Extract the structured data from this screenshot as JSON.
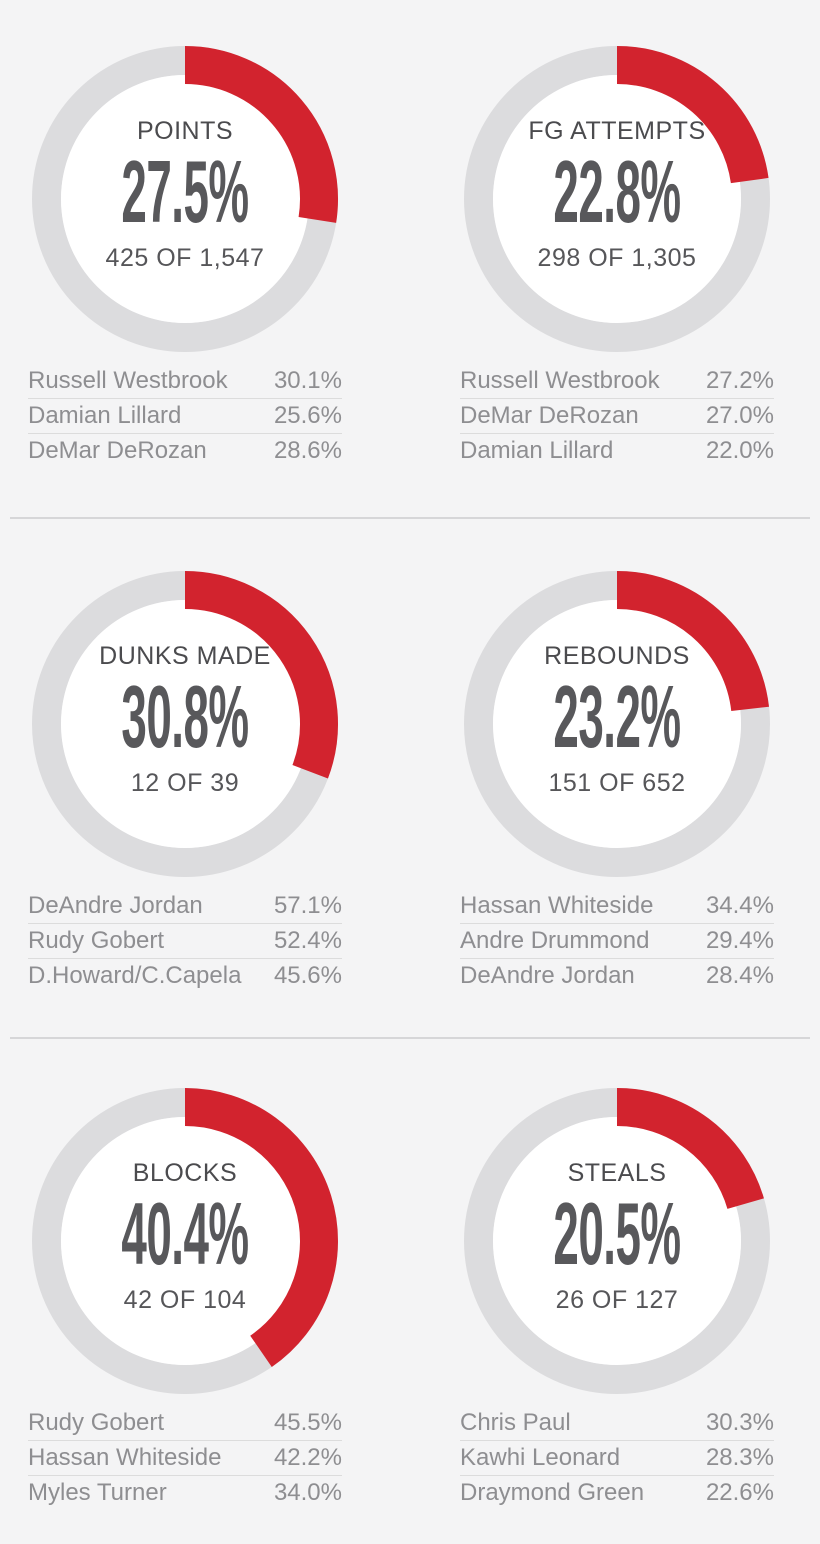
{
  "ui": {
    "background_color": "#f4f4f5",
    "accent_red": "#d2232e",
    "ring_gray": "#dcdcde",
    "hole_color": "#ffffff",
    "section_divider_color": "#d6d6d8"
  },
  "chart_data": {
    "type": "donut-grid",
    "layout": "2 columns x 3 rows, each donut starts at 12 o'clock and fills clockwise",
    "charts": [
      {
        "title": "POINTS",
        "percent": 27.5,
        "pct_label": "27.5%",
        "fraction_label": "425 OF 1,547",
        "leaders": [
          {
            "name": "Russell Westbrook",
            "value": "30.1%"
          },
          {
            "name": "Damian Lillard",
            "value": "25.6%"
          },
          {
            "name": "DeMar DeRozan",
            "value": "28.6%"
          }
        ]
      },
      {
        "title": "FG ATTEMPTS",
        "percent": 22.8,
        "pct_label": "22.8%",
        "fraction_label": "298 OF 1,305",
        "leaders": [
          {
            "name": "Russell Westbrook",
            "value": "27.2%"
          },
          {
            "name": "DeMar DeRozan",
            "value": "27.0%"
          },
          {
            "name": "Damian Lillard",
            "value": "22.0%"
          }
        ]
      },
      {
        "title": "DUNKS MADE",
        "percent": 30.8,
        "pct_label": "30.8%",
        "fraction_label": "12 OF 39",
        "leaders": [
          {
            "name": "DeAndre Jordan",
            "value": "57.1%"
          },
          {
            "name": "Rudy Gobert",
            "value": "52.4%"
          },
          {
            "name": "D.Howard/C.Capela",
            "value": "45.6%"
          }
        ]
      },
      {
        "title": "REBOUNDS",
        "percent": 23.2,
        "pct_label": "23.2%",
        "fraction_label": "151 OF 652",
        "leaders": [
          {
            "name": "Hassan Whiteside",
            "value": "34.4%"
          },
          {
            "name": "Andre Drummond",
            "value": "29.4%"
          },
          {
            "name": "DeAndre Jordan",
            "value": "28.4%"
          }
        ]
      },
      {
        "title": "BLOCKS",
        "percent": 40.4,
        "pct_label": "40.4%",
        "fraction_label": "42 OF 104",
        "leaders": [
          {
            "name": "Rudy Gobert",
            "value": "45.5%"
          },
          {
            "name": "Hassan Whiteside",
            "value": "42.2%"
          },
          {
            "name": "Myles Turner",
            "value": "34.0%"
          }
        ]
      },
      {
        "title": "STEALS",
        "percent": 20.5,
        "pct_label": "20.5%",
        "fraction_label": "26 OF 127",
        "leaders": [
          {
            "name": "Chris Paul",
            "value": "30.3%"
          },
          {
            "name": "Kawhi Leonard",
            "value": "28.3%"
          },
          {
            "name": "Draymond Green",
            "value": "22.6%"
          }
        ]
      }
    ]
  }
}
